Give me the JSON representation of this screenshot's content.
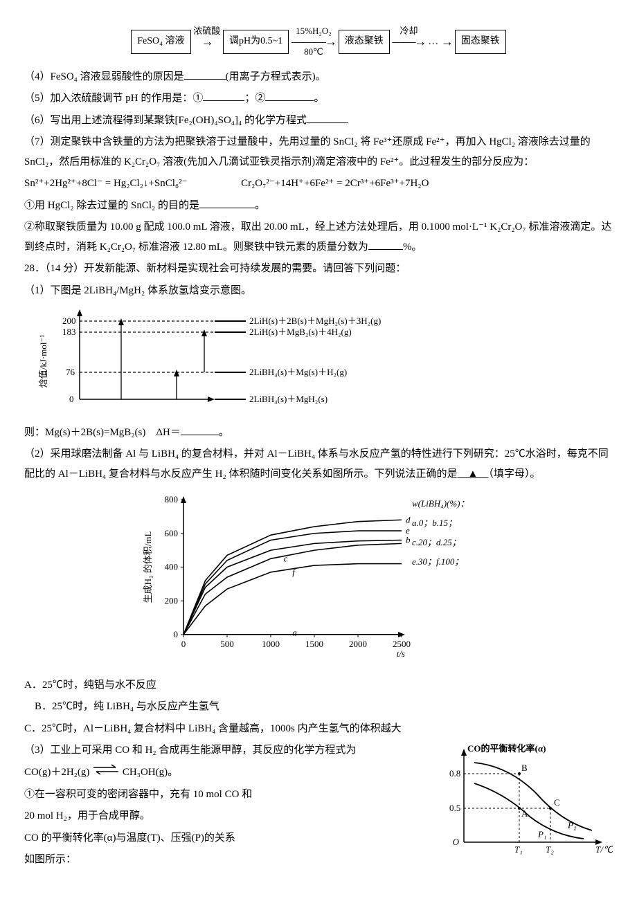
{
  "flow": {
    "box1": "FeSO₄ 溶液",
    "a1_top": "浓硫酸",
    "box2": "调pH为0.5~1",
    "a2_top": "15%H₂O₂",
    "a2_bot": "80℃",
    "box3": "液态聚铁",
    "a3_top": "冷却",
    "dots": "…",
    "box4": "固态聚铁"
  },
  "q4": "（4）FeSO₄ 溶液显弱酸性的原因是",
  "q4_tail": "(用离子方程式表示)。",
  "q5": "（5）加入浓硫酸调节 pH 的作用是：①",
  "q5_mid": "；②",
  "q5_tail": "。",
  "q6": "（6）写出用上述流程得到某聚铁[Fe₂(OH)₄SO₄]₄ 的化学方程式",
  "q7": "（7）测定聚铁中含铁量的方法为把聚铁溶于过量酸中，先用过量的 SnCl₂ 将 Fe³⁺还原成 Fe²⁺，再加入 HgCl₂ 溶液除去过量的 SnCl₂，然后用标准的 K₂Cr₂O₇ 溶液(先加入几滴试亚铁灵指示剂)滴定溶液中的 Fe²⁺。此过程发生的部分反应为：",
  "eq_a": "Sn²⁺+2Hg²⁺+8Cl⁻ = Hg₂Cl₂↓+SnCl₆²⁻",
  "eq_b": "Cr₂O₇²⁻+14H⁺+6Fe²⁺ = 2Cr³⁺+6Fe³⁺+7H₂O",
  "q7_1": "①用 HgCl₂ 除去过量的 SnCl₂ 的目的是",
  "q7_1_tail": "。",
  "q7_2": "②称取聚铁质量为 10.00 g 配成 100.0 mL 溶液，取出 20.00 mL，经上述方法处理后，用 0.1000 mol·L⁻¹ K₂Cr₂O₇ 标准溶液滴定。达到终点时，消耗 K₂Cr₂O₇ 标准溶液 12.80 mL。则聚铁中铁元素的质量分数为",
  "q7_2_tail": "%。",
  "q28": "28．（14 分）开发新能源、新材料是实现社会可持续发展的需要。请回答下列问题：",
  "q28_1": "（1）下图是 2LiBH₄/MgH₂ 体系放氢焓变示意图。",
  "enthalpy": {
    "y_label": "焓值/kJ·mol⁻¹",
    "ticks": [
      "200",
      "183",
      "76",
      "0"
    ],
    "levels": [
      "2LiH(s)＋2B(s)＋MgH₂(s)＋3H₂(g)",
      "2LiH(s)＋MgB₂(s)＋4H₂(g)",
      "2LiBH₄(s)＋Mg(s)＋H₂(g)",
      "2LiBH₄(s)＋MgH₂(s)"
    ],
    "colors": {
      "axis": "#000000",
      "dash": "#000000",
      "text": "#000000"
    }
  },
  "q28_1b": "则：Mg(s)＋2B(s)=MgB₂(s)　ΔH＝",
  "q28_1b_tail": "。",
  "q28_2": "（2）采用球磨法制备 Al 与 LiBH₄ 的复合材料，并对 Al－LiBH₄ 体系与水反应产氢的特性进行下列研究：25℃水浴时，每克不同配比的 Al－LiBH₄ 复合材料与水反应产生 H₂ 体积随时间变化关系如图所示。下列说法正确的是",
  "q28_2_mark": "▲",
  "q28_2_tail": "（填字母）。",
  "curve": {
    "y_label": "生成H₂ 的体积/mL",
    "x_label": "t/s",
    "y_ticks": [
      0,
      200,
      400,
      600,
      800
    ],
    "x_ticks": [
      0,
      500,
      1000,
      1500,
      2000,
      2500
    ],
    "legend_title": "w(LiBH₄)(%)：",
    "legend": [
      "a.0；b.15；",
      "c.20；d.25；",
      "e.30；f.100；"
    ],
    "series": {
      "a": {
        "label": "a",
        "color": "#000000",
        "points": [
          [
            0,
            0
          ],
          [
            2500,
            0
          ]
        ]
      },
      "b": {
        "label": "b",
        "color": "#000000",
        "points": [
          [
            0,
            0
          ],
          [
            250,
            280
          ],
          [
            500,
            400
          ],
          [
            1000,
            500
          ],
          [
            1500,
            540
          ],
          [
            2000,
            555
          ],
          [
            2500,
            560
          ]
        ]
      },
      "c": {
        "label": "c",
        "color": "#000000",
        "points": [
          [
            0,
            0
          ],
          [
            250,
            240
          ],
          [
            500,
            340
          ],
          [
            1000,
            450
          ],
          [
            1500,
            500
          ],
          [
            2000,
            530
          ],
          [
            2500,
            540
          ]
        ]
      },
      "d": {
        "label": "d",
        "color": "#000000",
        "points": [
          [
            0,
            0
          ],
          [
            250,
            320
          ],
          [
            500,
            470
          ],
          [
            1000,
            590
          ],
          [
            1500,
            640
          ],
          [
            2000,
            670
          ],
          [
            2500,
            680
          ]
        ]
      },
      "e": {
        "label": "e",
        "color": "#000000",
        "points": [
          [
            0,
            0
          ],
          [
            250,
            300
          ],
          [
            500,
            440
          ],
          [
            1000,
            560
          ],
          [
            1500,
            600
          ],
          [
            2000,
            615
          ],
          [
            2500,
            615
          ]
        ]
      },
      "f": {
        "label": "f",
        "color": "#000000",
        "points": [
          [
            0,
            0
          ],
          [
            250,
            170
          ],
          [
            500,
            270
          ],
          [
            1000,
            370
          ],
          [
            1500,
            410
          ],
          [
            2000,
            420
          ],
          [
            2500,
            420
          ]
        ]
      }
    },
    "xlim": [
      0,
      2500
    ],
    "ylim": [
      0,
      800
    ],
    "font_size": 13,
    "line_width": 1.6,
    "bg": "#ffffff"
  },
  "optA": "A．25℃时，纯铝与水不反应",
  "optB": "B．25℃时，纯 LiBH₄ 与水反应产生氢气",
  "optC": "C．25℃时，Al－LiBH₄ 复合材料中 LiBH₄ 含量越高，1000s 内产生氢气的体积越大",
  "q28_3": "（3）工业上可采用 CO 和 H₂ 合成再生能源甲醇，其反应的化学方程式为",
  "q28_3_eq_left": "CO(g)＋2H₂(g)",
  "q28_3_eq_right": "CH₃OH(g)。",
  "q28_3_1a": "①在一容积可变的密闭容器中，充有 10 mol CO 和",
  "q28_3_1b": "20 mol H₂，用于合成甲醇。",
  "q28_3_1c": "CO 的平衡转化率(α)与温度(T)、压强(P)的关系",
  "q28_3_1d": "如图所示：",
  "alpha_chart": {
    "y_label": "CO的平衡转化率(α)",
    "x_label": "T/℃",
    "y_ticks": [
      0.5,
      0.8
    ],
    "x_ticks_labels": [
      "T₁",
      "T₂"
    ],
    "points": [
      "A",
      "B",
      "C"
    ],
    "curves": [
      "P₁",
      "P₂"
    ],
    "axis_color": "#000000",
    "curve_color": "#000000",
    "dash_color": "#000000",
    "font_size": 13
  }
}
